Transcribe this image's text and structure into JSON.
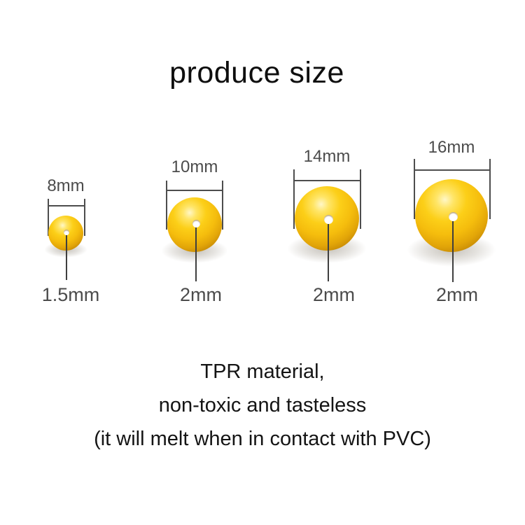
{
  "title": "produce size",
  "beads": [
    {
      "diameter_label": "8mm",
      "hole_label": "1.5mm"
    },
    {
      "diameter_label": "10mm",
      "hole_label": "2mm"
    },
    {
      "diameter_label": "14mm",
      "hole_label": "2mm"
    },
    {
      "diameter_label": "16mm",
      "hole_label": "2mm"
    }
  ],
  "description_lines": [
    "TPR material,",
    "non-toxic and tasteless",
    "(it will melt when in contact with PVC)"
  ],
  "colors": {
    "bead_yellow": "#f5bd0d",
    "bead_highlight": "#fff7c8",
    "bead_shade": "#9c6a05",
    "measure_line": "#4d4d4d",
    "label_text": "#4c4c4c",
    "body_text": "#141414"
  }
}
